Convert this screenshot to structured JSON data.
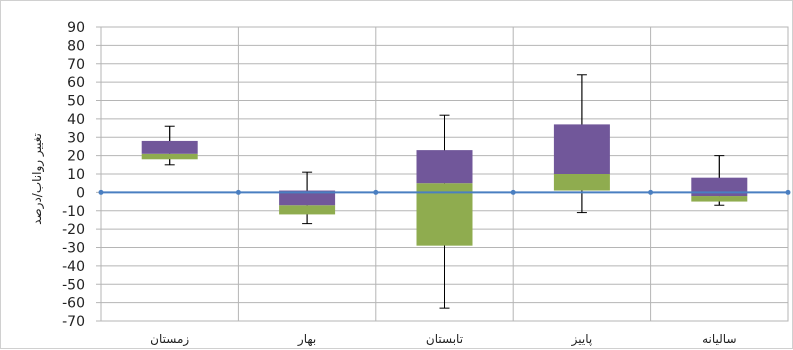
{
  "chart_data": {
    "type": "box",
    "title": "",
    "xlabel": "",
    "ylabel": "تغییر رواناب/درصد",
    "ylim": [
      -70,
      90
    ],
    "ytick_step": 10,
    "grid": true,
    "categories": [
      "زمستان",
      "بهار",
      "تابستان",
      "پاییز",
      "سالیانه"
    ],
    "series": [
      {
        "whisker_low": [
          15,
          -17,
          -63,
          -11,
          -7
        ],
        "lower": [
          18,
          -12,
          -29,
          1,
          -5
        ],
        "median": [
          21,
          -7,
          5,
          10,
          -2
        ],
        "upper": [
          28,
          1,
          23,
          37,
          8
        ],
        "whisker_high": [
          36,
          11,
          42,
          64,
          20
        ]
      }
    ],
    "baseline": 0,
    "colors": {
      "lower_box": "#8fac4f",
      "upper_box": "#71579a",
      "baseline": "#4a7fc1",
      "grid": "#b5b5b5",
      "whisker": "#000000"
    }
  }
}
